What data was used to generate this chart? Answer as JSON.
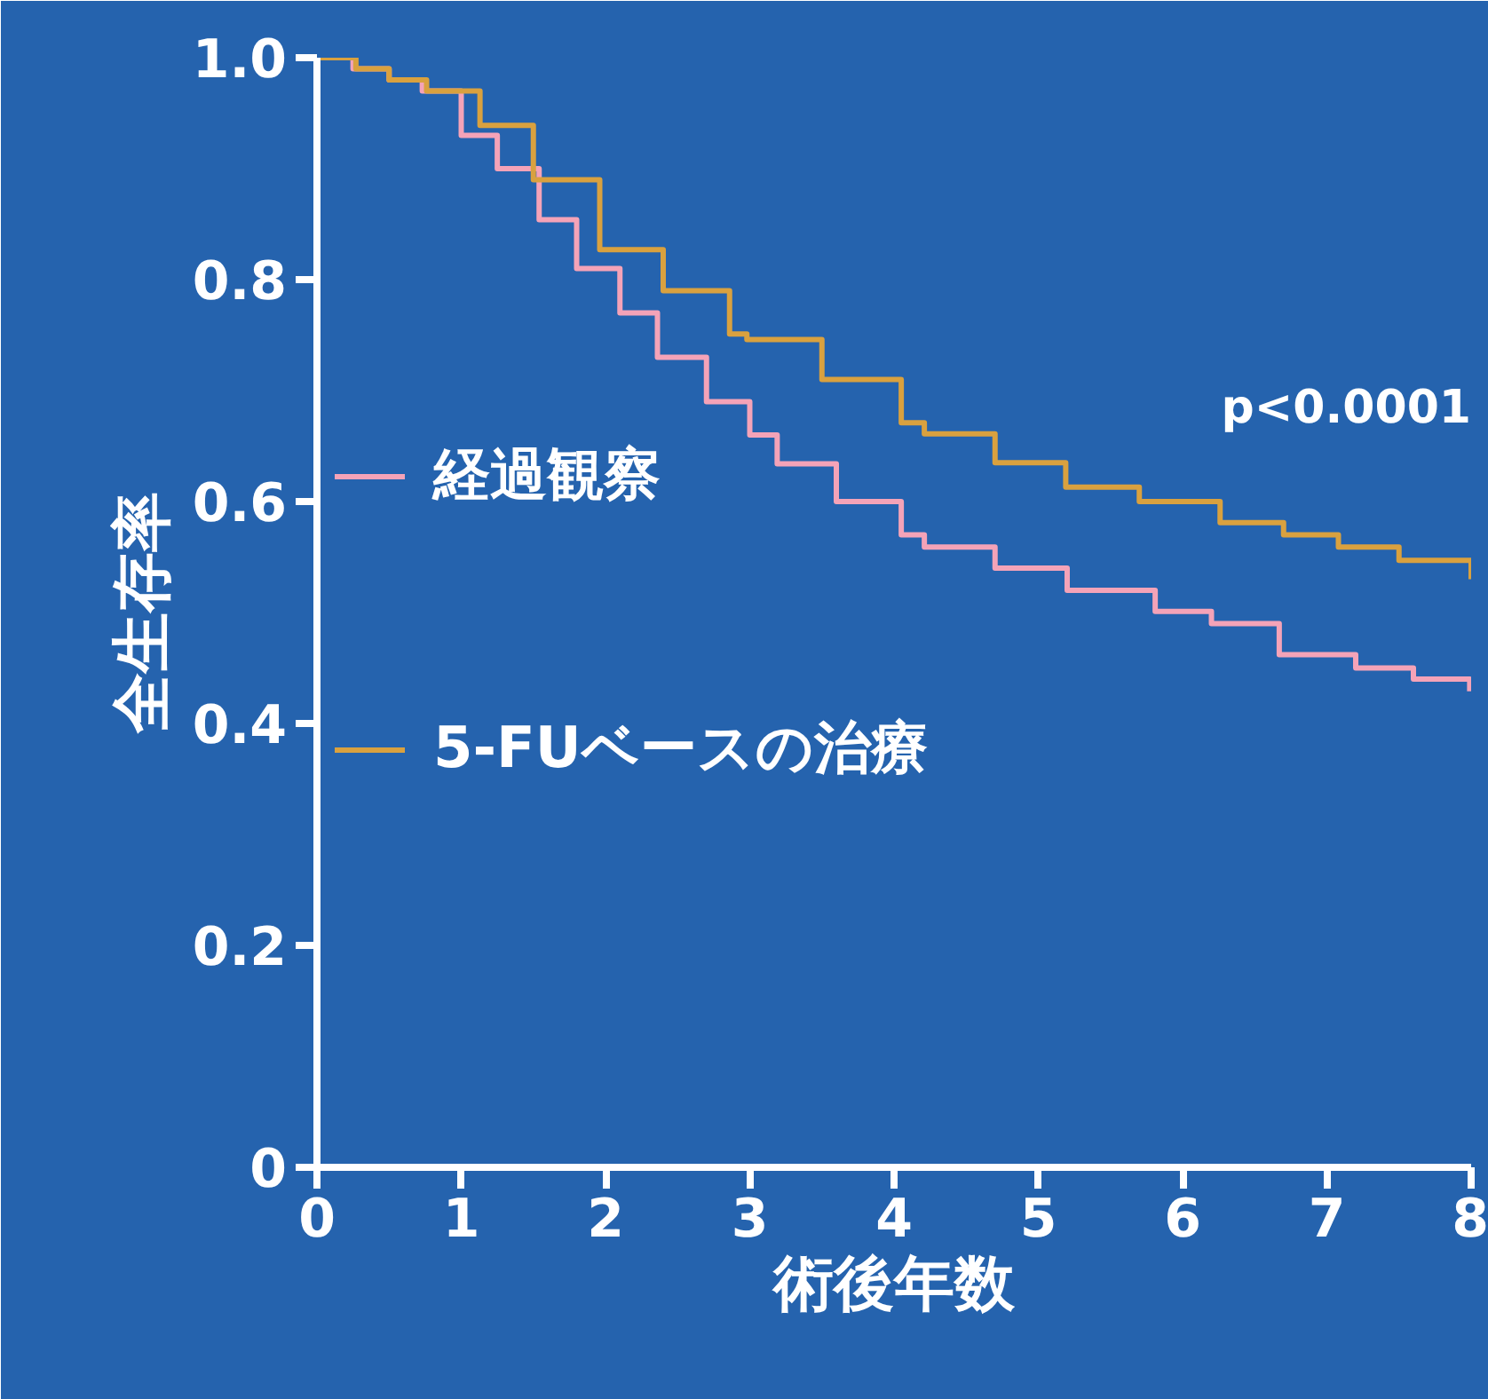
{
  "chart_data": {
    "type": "step",
    "xlabel": "術後年数",
    "ylabel": "全生存率",
    "series": [
      {
        "name": "経過観察",
        "color": "#f4a3b8",
        "x": [
          0,
          0.25,
          0.5,
          0.73,
          1.0,
          1.25,
          1.54,
          1.8,
          2.1,
          2.36,
          2.7,
          3.0,
          3.19,
          3.6,
          4.05,
          4.21,
          4.7,
          5.2,
          5.81,
          6.2,
          6.67,
          7.2,
          7.6,
          7.99
        ],
        "values": [
          1.0,
          0.99,
          0.98,
          0.97,
          0.93,
          0.9,
          0.854,
          0.81,
          0.77,
          0.73,
          0.69,
          0.66,
          0.634,
          0.6,
          0.57,
          0.559,
          0.54,
          0.52,
          0.501,
          0.49,
          0.462,
          0.45,
          0.44,
          0.429
        ]
      },
      {
        "name": "5-FUベースの治療",
        "color": "#d9a13f",
        "x": [
          0,
          0.27,
          0.5,
          0.76,
          1.13,
          1.5,
          1.96,
          2.4,
          2.86,
          2.98,
          3.5,
          4.05,
          4.21,
          4.7,
          5.19,
          5.7,
          6.26,
          6.7,
          7.08,
          7.5,
          8.0
        ],
        "values": [
          1.0,
          0.99,
          0.98,
          0.97,
          0.939,
          0.89,
          0.827,
          0.79,
          0.751,
          0.746,
          0.71,
          0.671,
          0.661,
          0.635,
          0.613,
          0.6,
          0.581,
          0.57,
          0.559,
          0.547,
          0.53
        ]
      }
    ],
    "xlim": [
      0,
      8
    ],
    "xticks": [
      0,
      1,
      2,
      3,
      4,
      5,
      6,
      7,
      8
    ],
    "ylim": [
      0,
      1
    ],
    "yticks": [
      0,
      0.2,
      0.4,
      0.6,
      0.8,
      {
        "value": 1,
        "label": "1.0"
      }
    ],
    "annotations": [
      "p<0.0001"
    ],
    "legend": "left",
    "grid": false
  }
}
